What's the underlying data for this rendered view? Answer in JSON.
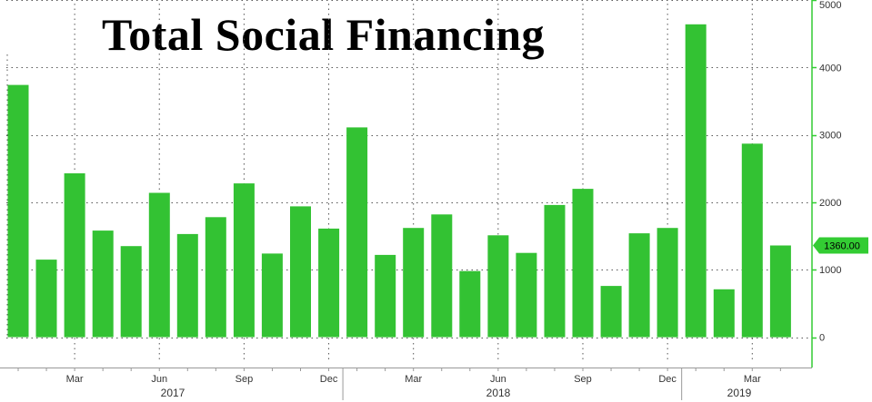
{
  "chart_data": {
    "type": "bar",
    "title": "Total Social Financing",
    "categories": [
      "2017-01",
      "2017-02",
      "2017-03",
      "2017-04",
      "2017-05",
      "2017-06",
      "2017-07",
      "2017-08",
      "2017-09",
      "2017-10",
      "2017-11",
      "2017-12",
      "2018-01",
      "2018-02",
      "2018-03",
      "2018-04",
      "2018-05",
      "2018-06",
      "2018-07",
      "2018-08",
      "2018-09",
      "2018-10",
      "2018-11",
      "2018-12",
      "2019-01",
      "2019-02",
      "2019-03",
      "2019-04"
    ],
    "values": [
      3740,
      1150,
      2430,
      1580,
      1350,
      2140,
      1530,
      1780,
      2280,
      1240,
      1940,
      1610,
      3110,
      1220,
      1620,
      1820,
      980,
      1510,
      1250,
      1960,
      2200,
      760,
      1540,
      1620,
      4640,
      710,
      2870,
      1360
    ],
    "ylim": [
      -450,
      5000
    ],
    "y_ticks": [
      "0",
      "1000",
      "2000",
      "3000",
      "4000",
      "5000"
    ],
    "x_tick_labels": [
      "Mar",
      "Jun",
      "Sep",
      "Dec",
      "Mar",
      "Jun",
      "Sep",
      "Dec",
      "Mar"
    ],
    "year_labels": [
      "2017",
      "2018",
      "2019"
    ],
    "last_value_label": "1360.00",
    "grid": true,
    "bar_color": "#33c233",
    "axis_color": "#33cc33"
  }
}
